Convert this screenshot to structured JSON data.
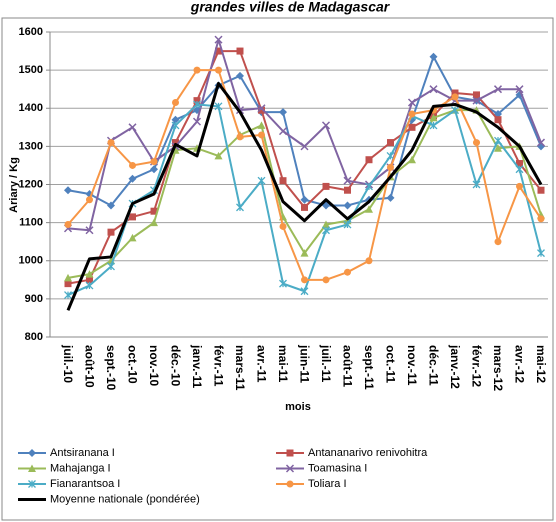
{
  "chart_data": {
    "type": "line",
    "title": "grandes villes de Madagascar",
    "y_label": "Ariary / Kg",
    "x_label": "mois",
    "categories": [
      "juil.-10",
      "août-10",
      "sept.-10",
      "oct.-10",
      "nov.-10",
      "déc.-10",
      "janv.-11",
      "févr.-11",
      "mars-11",
      "avr.-11",
      "mai-11",
      "juin-11",
      "juil.-11",
      "août-11",
      "sept.-11",
      "oct.-11",
      "nov.-11",
      "déc.-11",
      "janv.-12",
      "févr.-12",
      "mars-12",
      "avr.-12",
      "mai-12"
    ],
    "ylim": [
      800,
      1600
    ],
    "yticks": [
      800,
      900,
      1000,
      1100,
      1200,
      1300,
      1400,
      1500,
      1600
    ],
    "grid": true,
    "legend": "bottom",
    "series": [
      {
        "name": "Antsiranana I",
        "color": "#4f81bd",
        "marker": "diamond",
        "values": [
          1185,
          1175,
          1145,
          1215,
          1240,
          1370,
          1395,
          1460,
          1485,
          1390,
          1390,
          1160,
          1145,
          1145,
          1160,
          1165,
          1370,
          1535,
          1430,
          1420,
          1385,
          1435,
          1300
        ]
      },
      {
        "name": "Antananarivo renivohitra",
        "color": "#c0504d",
        "marker": "square",
        "values": [
          940,
          950,
          1075,
          1115,
          1130,
          1310,
          1420,
          1550,
          1550,
          1395,
          1210,
          1140,
          1195,
          1185,
          1265,
          1310,
          1350,
          1380,
          1440,
          1435,
          1370,
          1255,
          1185
        ]
      },
      {
        "name": "Mahajanga I",
        "color": "#9bbb59",
        "marker": "triangle",
        "values": [
          955,
          965,
          1000,
          1060,
          1100,
          1290,
          1295,
          1275,
          1330,
          1355,
          1115,
          1020,
          1095,
          1105,
          1135,
          1220,
          1265,
          1375,
          1395,
          1395,
          1295,
          1300,
          1120
        ]
      },
      {
        "name": "Toamasina I",
        "color": "#8064a2",
        "marker": "x",
        "values": [
          1085,
          1080,
          1315,
          1350,
          1260,
          1300,
          1365,
          1580,
          1395,
          1400,
          1340,
          1300,
          1355,
          1210,
          1200,
          1245,
          1415,
          1450,
          1420,
          1420,
          1450,
          1450,
          1310
        ]
      },
      {
        "name": "Fianarantsoa I",
        "color": "#4bacc6",
        "marker": "star",
        "values": [
          910,
          935,
          985,
          1150,
          1185,
          1355,
          1410,
          1405,
          1140,
          1210,
          940,
          920,
          1080,
          1095,
          1195,
          1275,
          1380,
          1355,
          1395,
          1200,
          1315,
          1240,
          1020
        ]
      },
      {
        "name": "Toliara I",
        "color": "#f79646",
        "marker": "circle",
        "values": [
          1095,
          1160,
          1310,
          1250,
          1260,
          1415,
          1500,
          1500,
          1325,
          1330,
          1090,
          950,
          950,
          970,
          1000,
          1245,
          1385,
          1395,
          1430,
          1310,
          1050,
          1195,
          1110
        ]
      },
      {
        "name": "Moyenne nationale (pondérée)",
        "color": "#000000",
        "marker": "none",
        "width": 3,
        "values": [
          870,
          1005,
          1010,
          1150,
          1175,
          1305,
          1275,
          1465,
          1390,
          1290,
          1155,
          1105,
          1160,
          1110,
          1155,
          1220,
          1290,
          1405,
          1410,
          1390,
          1350,
          1300,
          1200
        ]
      }
    ]
  }
}
